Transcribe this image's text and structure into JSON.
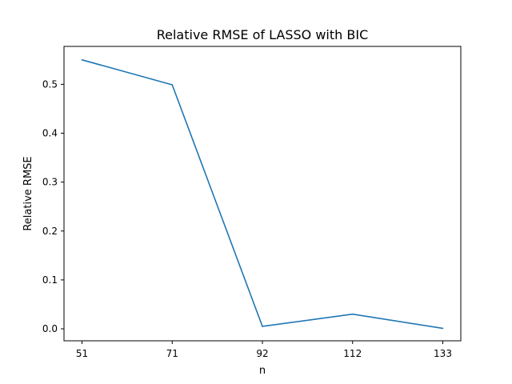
{
  "chart_data": {
    "type": "line",
    "title": "Relative RMSE of LASSO with BIC",
    "xlabel": "n",
    "ylabel": "Relative RMSE",
    "categories": [
      "51",
      "71",
      "92",
      "112",
      "133"
    ],
    "series": [
      {
        "values": [
          0.55,
          0.499,
          0.005,
          0.03,
          0.001
        ],
        "color": "#1f77b4"
      }
    ],
    "yticks": [
      {
        "value": 0.0,
        "label": "0.0"
      },
      {
        "value": 0.1,
        "label": "0.1"
      },
      {
        "value": 0.2,
        "label": "0.2"
      },
      {
        "value": 0.3,
        "label": "0.3"
      },
      {
        "value": 0.4,
        "label": "0.4"
      },
      {
        "value": 0.5,
        "label": "0.5"
      }
    ],
    "ylim": [
      -0.0245,
      0.5775
    ],
    "grid": false
  }
}
